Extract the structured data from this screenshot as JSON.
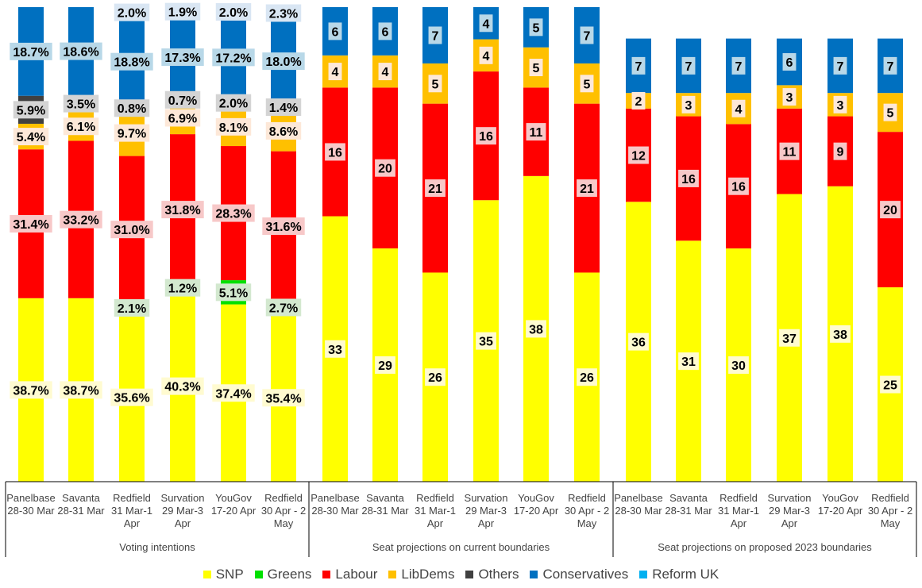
{
  "chart_data": {
    "type": "bar",
    "stacked": true,
    "legend": [
      "SNP",
      "Greens",
      "Labour",
      "LibDems",
      "Others",
      "Conservatives",
      "Reform UK"
    ],
    "legend_position": "bottom",
    "colors": {
      "SNP": "#ffff00",
      "Greens": "#00e000",
      "Labour": "#ff0000",
      "LibDems": "#ffc000",
      "Others": "#404040",
      "Conservatives": "#0070c0",
      "Reform UK": "#00b0f0"
    },
    "groups": [
      {
        "label": "Voting intentions",
        "unit": "percent",
        "ylim": [
          0,
          100
        ],
        "categories": [
          {
            "name": "Panelbase",
            "dates": "28-30 Mar"
          },
          {
            "name": "Savanta",
            "dates": "28-31 Mar"
          },
          {
            "name": "Redfield",
            "dates": "31 Mar-1 Apr"
          },
          {
            "name": "Survation",
            "dates": "29 Mar-3 Apr"
          },
          {
            "name": "YouGov",
            "dates": "17-20 Apr"
          },
          {
            "name": "Redfield",
            "dates": "30 Apr - 2 May"
          }
        ],
        "series": [
          {
            "name": "SNP",
            "values": [
              38.7,
              38.7,
              35.6,
              40.3,
              37.4,
              35.4
            ],
            "labels": [
              "38.7%",
              "38.7%",
              "35.6%",
              "40.3%",
              "37.4%",
              "35.4%"
            ]
          },
          {
            "name": "Greens",
            "values": [
              0,
              0,
              2.1,
              1.2,
              5.1,
              2.7
            ],
            "labels": [
              "",
              "",
              "2.1%",
              "1.2%",
              "5.1%",
              "2.7%"
            ]
          },
          {
            "name": "Labour",
            "values": [
              31.4,
              33.2,
              31.0,
              31.8,
              28.3,
              31.6
            ],
            "labels": [
              "31.4%",
              "33.2%",
              "31.0%",
              "31.8%",
              "28.3%",
              "31.6%"
            ]
          },
          {
            "name": "LibDems",
            "values": [
              5.4,
              6.1,
              9.7,
              6.9,
              8.1,
              8.6
            ],
            "labels": [
              "5.4%",
              "6.1%",
              "9.7%",
              "6.9%",
              "8.1%",
              "8.6%"
            ]
          },
          {
            "name": "Others",
            "values": [
              5.9,
              3.5,
              0.8,
              0.7,
              2.0,
              1.4
            ],
            "labels": [
              "5.9%",
              "3.5%",
              "0.8%",
              "0.7%",
              "2.0%",
              "1.4%"
            ]
          },
          {
            "name": "Conservatives",
            "values": [
              18.7,
              18.6,
              18.8,
              17.3,
              17.2,
              18.0
            ],
            "labels": [
              "18.7%",
              "18.6%",
              "18.8%",
              "17.3%",
              "17.2%",
              "18.0%"
            ]
          },
          {
            "name": "Reform UK",
            "values": [
              0,
              0,
              2.0,
              1.9,
              2.0,
              2.3
            ],
            "labels": [
              "",
              "",
              "2.0%",
              "1.9%",
              "2.0%",
              "2.3%"
            ]
          }
        ]
      },
      {
        "label": "Seat projections on current boundaries",
        "unit": "seats",
        "ylim": [
          0,
          59
        ],
        "categories": [
          {
            "name": "Panelbase",
            "dates": "28-30 Mar"
          },
          {
            "name": "Savanta",
            "dates": "28-31 Mar"
          },
          {
            "name": "Redfield",
            "dates": "31 Mar-1 Apr"
          },
          {
            "name": "Survation",
            "dates": "29 Mar-3 Apr"
          },
          {
            "name": "YouGov",
            "dates": "17-20 Apr"
          },
          {
            "name": "Redfield",
            "dates": "30 Apr - 2 May"
          }
        ],
        "series": [
          {
            "name": "SNP",
            "values": [
              33,
              29,
              26,
              35,
              38,
              26
            ],
            "labels": [
              "33",
              "29",
              "26",
              "35",
              "38",
              "26"
            ]
          },
          {
            "name": "Labour",
            "values": [
              16,
              20,
              21,
              16,
              11,
              21
            ],
            "labels": [
              "16",
              "20",
              "21",
              "16",
              "11",
              "21"
            ]
          },
          {
            "name": "LibDems",
            "values": [
              4,
              4,
              5,
              4,
              5,
              5
            ],
            "labels": [
              "4",
              "4",
              "5",
              "4",
              "5",
              "5"
            ]
          },
          {
            "name": "Conservatives",
            "values": [
              6,
              6,
              7,
              4,
              5,
              7
            ],
            "labels": [
              "6",
              "6",
              "7",
              "4",
              "5",
              "7"
            ]
          }
        ]
      },
      {
        "label": "Seat projections on proposed 2023 boundaries",
        "unit": "seats",
        "ylim": [
          0,
          59
        ],
        "categories": [
          {
            "name": "Panelbase",
            "dates": "28-30 Mar"
          },
          {
            "name": "Savanta",
            "dates": "28-31 Mar"
          },
          {
            "name": "Redfield",
            "dates": "31 Mar-1 Apr"
          },
          {
            "name": "Survation",
            "dates": "29 Mar-3 Apr"
          },
          {
            "name": "YouGov",
            "dates": "17-20 Apr"
          },
          {
            "name": "Redfield",
            "dates": "30 Apr - 2 May"
          }
        ],
        "series": [
          {
            "name": "SNP",
            "values": [
              36,
              31,
              30,
              37,
              38,
              25
            ],
            "labels": [
              "36",
              "31",
              "30",
              "37",
              "38",
              "25"
            ]
          },
          {
            "name": "Labour",
            "values": [
              12,
              16,
              16,
              11,
              9,
              20
            ],
            "labels": [
              "12",
              "16",
              "16",
              "11",
              "9",
              "20"
            ]
          },
          {
            "name": "LibDems",
            "values": [
              2,
              3,
              4,
              3,
              3,
              5
            ],
            "labels": [
              "2",
              "3",
              "4",
              "3",
              "3",
              "5"
            ]
          },
          {
            "name": "Conservatives",
            "values": [
              7,
              7,
              7,
              6,
              7,
              7
            ],
            "labels": [
              "7",
              "7",
              "7",
              "6",
              "7",
              "7"
            ]
          }
        ]
      }
    ]
  }
}
